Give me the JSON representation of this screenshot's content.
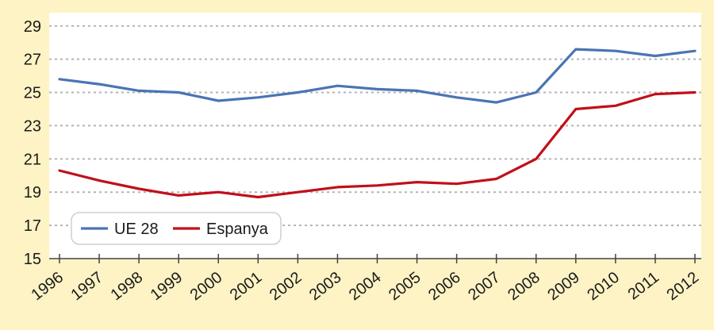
{
  "chart_data": {
    "type": "line",
    "x": [
      "1996",
      "1997",
      "1998",
      "1999",
      "2000",
      "2001",
      "2002",
      "2003",
      "2004",
      "2005",
      "2006",
      "2007",
      "2008",
      "2009",
      "2010",
      "2011",
      "2012"
    ],
    "series": [
      {
        "name": "UE 28",
        "color": "#4a74b4",
        "values": [
          25.8,
          25.5,
          25.1,
          25.0,
          24.5,
          24.7,
          25.0,
          25.4,
          25.2,
          25.1,
          24.7,
          24.4,
          25.0,
          27.6,
          27.5,
          27.2,
          27.5
        ]
      },
      {
        "name": "Espanya",
        "color": "#c0101a",
        "values": [
          20.3,
          19.7,
          19.2,
          18.8,
          19.0,
          18.7,
          19.0,
          19.3,
          19.4,
          19.6,
          19.5,
          19.8,
          21.0,
          24.0,
          24.2,
          24.9,
          25.0
        ]
      }
    ],
    "yticks": [
      "15",
      "17",
      "19",
      "21",
      "23",
      "25",
      "27",
      "29"
    ],
    "ylim": [
      15,
      29.8
    ],
    "grid": "horizontal dotted",
    "legend_position": "bottom-left"
  }
}
